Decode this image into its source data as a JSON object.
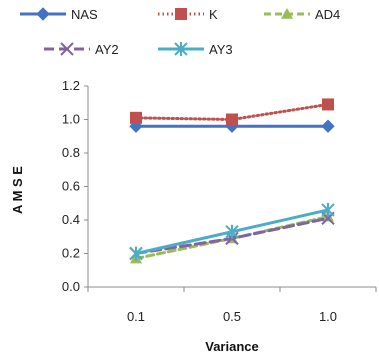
{
  "chart_data": {
    "type": "line",
    "x": [
      "0.1",
      "0.5",
      "1.0"
    ],
    "xlabel": "Variance",
    "ylabel": "A M S E",
    "ylim": [
      0.0,
      1.2
    ],
    "yticks": [
      "0.0",
      "0.2",
      "0.4",
      "0.6",
      "0.8",
      "1.0",
      "1.2"
    ],
    "grid": false,
    "legend_position": "top",
    "series": [
      {
        "name": "NAS",
        "values": [
          0.96,
          0.96,
          0.96
        ],
        "color": "#4472C4",
        "marker": "diamond",
        "dash": "solid"
      },
      {
        "name": "K",
        "values": [
          1.01,
          1.0,
          1.09
        ],
        "color": "#C0504D",
        "marker": "square",
        "dash": "dotted"
      },
      {
        "name": "AD4",
        "values": [
          0.17,
          0.29,
          0.42
        ],
        "color": "#9BBB59",
        "marker": "triangle",
        "dash": "dashed"
      },
      {
        "name": "AY2",
        "values": [
          0.2,
          0.29,
          0.41
        ],
        "color": "#8064A2",
        "marker": "x",
        "dash": "longdash"
      },
      {
        "name": "AY3",
        "values": [
          0.2,
          0.33,
          0.46
        ],
        "color": "#4BACC6",
        "marker": "star",
        "dash": "solid"
      }
    ]
  }
}
